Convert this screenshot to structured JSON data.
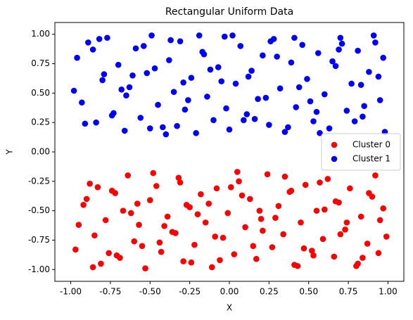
{
  "chart_data": {
    "type": "scatter",
    "title": "Rectangular Uniform Data",
    "xlabel": "X",
    "ylabel": "Y",
    "xlim": [
      -1.1,
      1.1
    ],
    "ylim": [
      -1.1,
      1.1
    ],
    "xticks": [
      {
        "value": -1,
        "label": "-1.00"
      },
      {
        "value": -0.75,
        "label": "-0.75"
      },
      {
        "value": -0.5,
        "label": "-0.50"
      },
      {
        "value": -0.25,
        "label": "-0.25"
      },
      {
        "value": 0,
        "label": "0.00"
      },
      {
        "value": 0.25,
        "label": "0.25"
      },
      {
        "value": 0.5,
        "label": "0.50"
      },
      {
        "value": 0.75,
        "label": "0.75"
      },
      {
        "value": 1,
        "label": "1.00"
      }
    ],
    "yticks": [
      {
        "value": -1,
        "label": "-1.00"
      },
      {
        "value": -0.75,
        "label": "-0.75"
      },
      {
        "value": -0.5,
        "label": "-0.50"
      },
      {
        "value": -0.25,
        "label": "-0.25"
      },
      {
        "value": 0,
        "label": "0.00"
      },
      {
        "value": 0.25,
        "label": "0.25"
      },
      {
        "value": 0.5,
        "label": "0.50"
      },
      {
        "value": 0.75,
        "label": "0.75"
      },
      {
        "value": 1,
        "label": "1.00"
      }
    ],
    "grid": false,
    "legend": "center right",
    "series": [
      {
        "name": "Cluster 0",
        "color": "#ff0000",
        "x": [
          -0.97,
          -0.92,
          -0.88,
          -0.85,
          -0.81,
          -0.78,
          -0.74,
          -0.71,
          -0.67,
          -0.64,
          -0.6,
          -0.57,
          -0.53,
          -0.5,
          -0.46,
          -0.43,
          -0.39,
          -0.36,
          -0.32,
          -0.29,
          -0.25,
          -0.22,
          -0.18,
          -0.15,
          -0.11,
          -0.08,
          -0.04,
          -0.01,
          0.03,
          0.06,
          0.1,
          0.13,
          0.17,
          0.2,
          0.24,
          0.27,
          0.31,
          0.34,
          0.38,
          0.41,
          0.45,
          0.48,
          0.52,
          0.55,
          0.59,
          0.62,
          0.66,
          0.69,
          0.73,
          0.76,
          0.8,
          0.83,
          0.87,
          0.9,
          0.94,
          0.97,
          -0.95,
          -0.83,
          -0.69,
          -0.58,
          -0.44,
          -0.31,
          -0.2,
          -0.06,
          0.08,
          0.21,
          0.35,
          0.47,
          0.6,
          0.74,
          0.88,
          0.99,
          -0.9,
          -0.76,
          -0.62,
          -0.48,
          -0.34,
          -0.24,
          -0.13,
          0.01,
          0.15,
          0.29,
          0.43,
          0.57,
          0.7,
          0.84,
          0.95,
          -0.86,
          -0.72,
          -0.55,
          -0.41,
          -0.27,
          -0.09,
          0.05,
          0.19,
          0.39,
          0.53,
          0.67,
          0.81,
          0.92
        ],
        "y": [
          -0.83,
          -0.45,
          -0.27,
          -0.71,
          -0.95,
          -0.58,
          -0.33,
          -0.88,
          -0.5,
          -0.2,
          -0.76,
          -0.62,
          -0.99,
          -0.41,
          -0.29,
          -0.85,
          -0.55,
          -0.68,
          -0.22,
          -0.93,
          -0.47,
          -0.79,
          -0.36,
          -0.6,
          -0.98,
          -0.31,
          -0.73,
          -0.52,
          -0.87,
          -0.25,
          -0.64,
          -0.4,
          -0.91,
          -0.57,
          -0.19,
          -0.81,
          -0.46,
          -0.7,
          -0.34,
          -0.96,
          -0.6,
          -0.28,
          -0.84,
          -0.5,
          -0.74,
          -0.23,
          -0.89,
          -0.43,
          -0.66,
          -0.31,
          -0.97,
          -0.55,
          -0.78,
          -0.38,
          -0.86,
          -0.48,
          -0.62,
          -0.3,
          -0.9,
          -0.44,
          -0.77,
          -0.26,
          -0.53,
          -0.92,
          -0.37,
          -0.67,
          -0.21,
          -0.82,
          -0.49,
          -0.6,
          -0.35,
          -0.72,
          -0.4,
          -0.86,
          -0.52,
          -0.18,
          -0.69,
          -0.94,
          -0.44,
          -0.3,
          -0.8,
          -0.56,
          -0.97,
          -0.26,
          -0.7,
          -0.9,
          -0.58,
          -0.98,
          -0.35,
          -0.8,
          -0.63,
          -0.45,
          -0.72,
          -0.17,
          -0.5,
          -0.33,
          -0.88,
          -0.42,
          -0.95,
          -0.2
        ]
      },
      {
        "name": "Cluster 1",
        "color": "#0000ff",
        "x": [
          -0.96,
          -0.93,
          -0.89,
          -0.84,
          -0.8,
          -0.77,
          -0.73,
          -0.7,
          -0.66,
          -0.63,
          -0.59,
          -0.56,
          -0.52,
          -0.49,
          -0.45,
          -0.42,
          -0.38,
          -0.35,
          -0.31,
          -0.28,
          -0.24,
          -0.21,
          -0.17,
          -0.14,
          -0.1,
          -0.07,
          -0.03,
          0.0,
          0.04,
          0.07,
          0.11,
          0.14,
          0.18,
          0.21,
          0.25,
          0.28,
          0.32,
          0.35,
          0.39,
          0.42,
          0.46,
          0.49,
          0.53,
          0.56,
          0.6,
          0.63,
          0.67,
          0.7,
          0.74,
          0.77,
          0.81,
          0.84,
          0.88,
          0.91,
          0.95,
          0.98,
          -0.98,
          -0.86,
          -0.74,
          -0.61,
          -0.5,
          -0.37,
          -0.26,
          -0.12,
          0.02,
          0.16,
          0.3,
          0.44,
          0.57,
          0.71,
          0.85,
          0.94,
          -0.91,
          -0.79,
          -0.65,
          -0.54,
          -0.4,
          -0.29,
          -0.16,
          -0.02,
          0.12,
          0.26,
          0.37,
          0.51,
          0.65,
          0.79,
          0.92,
          -0.82,
          -0.68,
          -0.47,
          -0.33,
          -0.19,
          -0.05,
          0.09,
          0.23,
          0.41,
          0.55,
          0.69,
          0.83,
          0.97
        ],
        "y": [
          0.8,
          0.42,
          0.93,
          0.25,
          0.61,
          0.97,
          0.33,
          0.74,
          0.18,
          0.55,
          0.88,
          0.29,
          0.67,
          0.99,
          0.4,
          0.21,
          0.78,
          0.51,
          0.94,
          0.36,
          0.63,
          0.16,
          0.85,
          0.47,
          0.27,
          0.72,
          0.98,
          0.19,
          0.58,
          0.9,
          0.32,
          0.69,
          0.45,
          0.82,
          0.23,
          0.96,
          0.54,
          0.17,
          0.76,
          0.38,
          0.91,
          0.62,
          0.26,
          0.84,
          0.49,
          0.2,
          0.73,
          0.97,
          0.35,
          0.58,
          0.86,
          0.3,
          0.68,
          0.99,
          0.44,
          0.17,
          0.52,
          0.87,
          0.31,
          0.65,
          0.2,
          0.95,
          0.44,
          0.7,
          0.99,
          0.28,
          0.81,
          0.55,
          0.16,
          0.92,
          0.39,
          0.64,
          0.24,
          0.66,
          0.48,
          0.9,
          0.15,
          0.59,
          0.83,
          0.37,
          0.64,
          0.94,
          0.21,
          0.43,
          0.77,
          0.26,
          0.93,
          0.96,
          0.53,
          0.71,
          0.22,
          0.99,
          0.6,
          0.27,
          0.46,
          0.97,
          0.34,
          0.87,
          0.57,
          0.8
        ]
      }
    ]
  }
}
